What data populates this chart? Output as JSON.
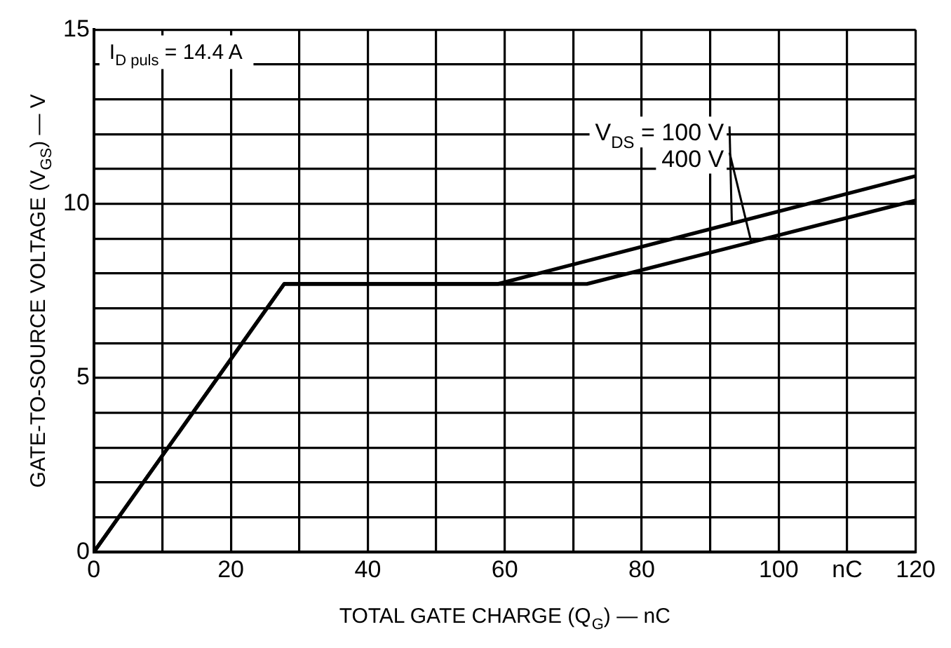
{
  "chart_data": {
    "type": "line",
    "xlabel": "TOTAL GATE CHARGE (Q$_{G}$) — nC",
    "ylabel": "GATE-TO-SOURCE VOLTAGE (V$_{GS}$) — V",
    "annotations": [
      "I$_{D puls}$ = 14.4 A"
    ],
    "series": [
      {
        "name": "V$_{DS}$ = 100 V",
        "color": "#000000",
        "x": [
          0,
          27.8,
          59,
          120
        ],
        "values": [
          0,
          7.7,
          7.7,
          10.8
        ]
      },
      {
        "name": "400 V",
        "color": "#000000",
        "x": [
          0,
          27.8,
          72,
          120
        ],
        "values": [
          0,
          7.7,
          7.7,
          10.1
        ]
      }
    ],
    "xlim": [
      0,
      120
    ],
    "xticks": [
      0,
      {
        "value": 10,
        "label": null
      },
      20,
      {
        "value": 30,
        "label": null
      },
      40,
      {
        "value": 50,
        "label": null
      },
      60,
      {
        "value": 70,
        "label": null
      },
      80,
      {
        "value": 90,
        "label": null
      },
      100,
      {
        "value": 110,
        "label": "nC"
      },
      120
    ],
    "ylim": [
      0,
      15
    ],
    "yticks": [
      0,
      {
        "value": 1,
        "label": null
      },
      {
        "value": 2,
        "label": null
      },
      {
        "value": 3,
        "label": null
      },
      {
        "value": 4,
        "label": null
      },
      5,
      {
        "value": 6,
        "label": null
      },
      {
        "value": 7,
        "label": null
      },
      {
        "value": 8,
        "label": null
      },
      {
        "value": 9,
        "label": null
      },
      10,
      {
        "value": 11,
        "label": null
      },
      {
        "value": 12,
        "label": null
      },
      {
        "value": 13,
        "label": null
      },
      {
        "value": 14,
        "label": null
      },
      15
    ],
    "grid": true,
    "legend": false,
    "marker": "none",
    "line_style": "solid"
  }
}
